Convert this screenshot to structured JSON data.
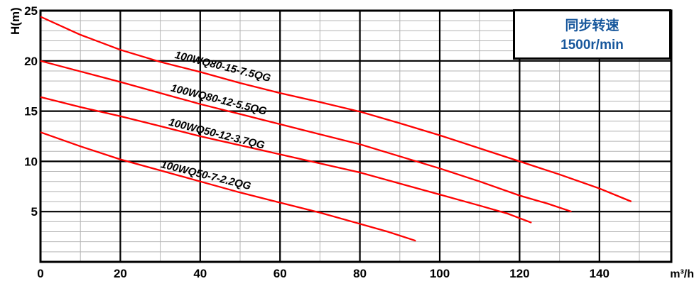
{
  "page": {
    "background": "#ffffff"
  },
  "legend": {
    "line1": "同步转速",
    "line2": "1500r/min",
    "text_color": "#17579c"
  },
  "chart_data": {
    "type": "line",
    "title": "",
    "ylabel": "H(m)",
    "x_unit_label": "m³/h",
    "xlim": [
      0,
      158
    ],
    "ylim": [
      0,
      25
    ],
    "x_major_ticks": [
      0,
      20,
      40,
      60,
      80,
      100,
      120,
      140
    ],
    "x_minor_step": 10,
    "y_major_ticks": [
      5,
      10,
      15,
      20,
      25
    ],
    "y_minor_step": 1,
    "grid": "on",
    "legend_position": "top-right",
    "synchronous_speed": "1500r/min",
    "colors": {
      "curve": "#ff0000",
      "grid_major": "#000000",
      "grid_minor": "#b3b3b3",
      "border": "#000000"
    },
    "series": [
      {
        "name": "100WQ80-15-7.5QG",
        "points": [
          [
            0,
            24.4
          ],
          [
            10,
            22.6
          ],
          [
            20,
            21.1
          ],
          [
            30,
            19.9
          ],
          [
            40,
            18.9
          ],
          [
            50,
            17.8
          ],
          [
            60,
            16.8
          ],
          [
            70,
            15.9
          ],
          [
            80,
            14.95
          ],
          [
            90,
            13.8
          ],
          [
            100,
            12.6
          ],
          [
            110,
            11.3
          ],
          [
            120,
            10.0
          ],
          [
            130,
            8.7
          ],
          [
            140,
            7.3
          ],
          [
            148,
            6.0
          ]
        ],
        "label": {
          "x": 33.5,
          "h": 20.3,
          "angle": 14
        }
      },
      {
        "name": "100WQ80-12-5.5QG",
        "points": [
          [
            0,
            20.0
          ],
          [
            10,
            18.95
          ],
          [
            20,
            17.9
          ],
          [
            30,
            16.8
          ],
          [
            40,
            15.7
          ],
          [
            50,
            14.7
          ],
          [
            60,
            13.7
          ],
          [
            70,
            12.7
          ],
          [
            80,
            11.7
          ],
          [
            90,
            10.5
          ],
          [
            100,
            9.3
          ],
          [
            110,
            8.0
          ],
          [
            120,
            6.6
          ],
          [
            127,
            5.8
          ],
          [
            133,
            5.0
          ]
        ],
        "label": {
          "x": 32.5,
          "h": 17.0,
          "angle": 14
        }
      },
      {
        "name": "100WQ50-12-3.7QG",
        "points": [
          [
            0,
            16.4
          ],
          [
            10,
            15.4
          ],
          [
            20,
            14.5
          ],
          [
            30,
            13.5
          ],
          [
            40,
            12.5
          ],
          [
            50,
            11.6
          ],
          [
            60,
            10.7
          ],
          [
            70,
            9.8
          ],
          [
            80,
            8.9
          ],
          [
            90,
            7.8
          ],
          [
            100,
            6.7
          ],
          [
            110,
            5.6
          ],
          [
            117,
            4.8
          ],
          [
            123,
            3.9
          ]
        ],
        "label": {
          "x": 32.0,
          "h": 13.6,
          "angle": 14
        }
      },
      {
        "name": "100WQ50-7-2.2QG",
        "points": [
          [
            0,
            12.9
          ],
          [
            10,
            11.5
          ],
          [
            20,
            10.2
          ],
          [
            30,
            9.1
          ],
          [
            40,
            8.0
          ],
          [
            50,
            6.9
          ],
          [
            60,
            5.9
          ],
          [
            70,
            4.9
          ],
          [
            79,
            3.9
          ],
          [
            87,
            3.0
          ],
          [
            94,
            2.1
          ]
        ],
        "label": {
          "x": 30.0,
          "h": 9.4,
          "angle": 14
        }
      }
    ]
  }
}
